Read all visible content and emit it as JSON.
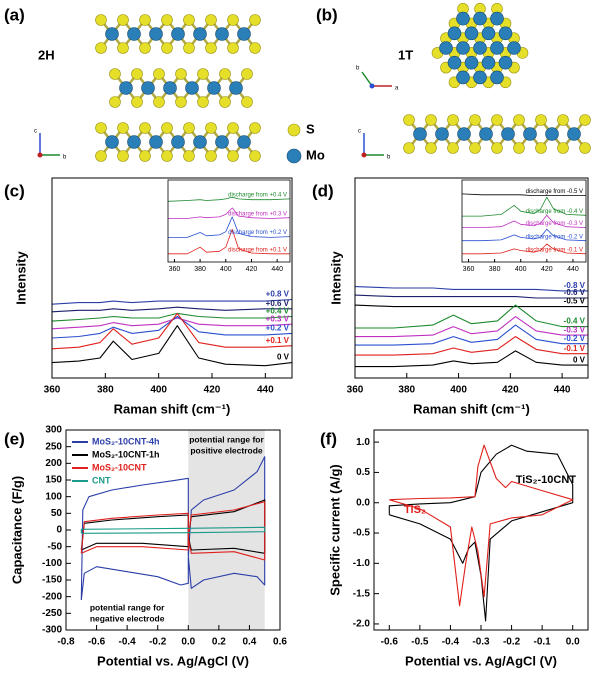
{
  "structures": [
    {
      "label": "(a)",
      "phase": "2H",
      "axes": [
        "c",
        "b"
      ]
    },
    {
      "label": "(b)",
      "phase": "1T",
      "axes": [
        "b",
        "a",
        "c",
        "b"
      ]
    }
  ],
  "atom_legend": [
    "S",
    "Mo"
  ],
  "chart_data": [
    {
      "type": "line",
      "panel_label": "(c)",
      "xlabel": "Raman shift (cm⁻¹)",
      "ylabel": "Intensity",
      "x": [
        360,
        370,
        378,
        383,
        390,
        400,
        407,
        415,
        425,
        440,
        450
      ],
      "xlim": [
        360,
        450
      ],
      "xticks": [
        360,
        380,
        400,
        420,
        440
      ],
      "ylim": [
        0,
        13
      ],
      "series": [
        {
          "name": "+0.8 V",
          "color": "#2b3ea8",
          "values": [
            4.8,
            4.9,
            4.9,
            5.0,
            4.9,
            5.0,
            5.0,
            5.0,
            5.0,
            5.0,
            5.1
          ]
        },
        {
          "name": "+0.6 V",
          "color": "#1c1f6b",
          "values": [
            4.3,
            4.4,
            4.4,
            4.5,
            4.4,
            4.5,
            4.6,
            4.5,
            4.4,
            4.5,
            4.5
          ]
        },
        {
          "name": "+0.4 V",
          "color": "#1d8a2e",
          "values": [
            3.7,
            3.8,
            3.9,
            4.0,
            3.9,
            3.9,
            4.2,
            4.0,
            3.9,
            3.9,
            4.0
          ]
        },
        {
          "name": "+0.3 V",
          "color": "#c030c0",
          "values": [
            3.2,
            3.3,
            3.4,
            3.6,
            3.4,
            3.5,
            3.9,
            3.5,
            3.4,
            3.4,
            3.5
          ]
        },
        {
          "name": "+0.2 V",
          "color": "#2a4fd0",
          "values": [
            2.6,
            2.7,
            2.9,
            3.3,
            2.9,
            3.1,
            4.0,
            3.0,
            2.8,
            2.8,
            2.9
          ]
        },
        {
          "name": "+0.1 V",
          "color": "#e0201c",
          "values": [
            1.9,
            2.0,
            2.3,
            3.2,
            2.2,
            2.6,
            4.2,
            2.3,
            2.0,
            2.0,
            2.1
          ]
        },
        {
          "name": "0 V",
          "color": "#000000",
          "values": [
            1.0,
            1.1,
            1.3,
            2.4,
            1.2,
            1.6,
            3.4,
            1.3,
            0.9,
            0.8,
            1.0
          ]
        }
      ]
    },
    {
      "type": "line",
      "x": [
        355,
        370,
        380,
        385,
        395,
        400,
        405,
        410,
        420,
        435,
        450
      ],
      "xlim": [
        355,
        450
      ],
      "xticks": [
        360,
        380,
        400,
        420,
        440
      ],
      "ylim": [
        0,
        10
      ],
      "series": [
        {
          "name": "discharge from +0.4 V",
          "color": "#1d8a2e",
          "values": [
            7.4,
            7.5,
            7.6,
            7.5,
            7.6,
            7.7,
            7.9,
            7.7,
            7.6,
            7.6,
            7.7
          ]
        },
        {
          "name": "discharge from +0.3 V",
          "color": "#c030c0",
          "values": [
            5.3,
            5.3,
            5.5,
            5.4,
            5.5,
            5.8,
            6.6,
            5.6,
            5.4,
            5.3,
            5.4
          ]
        },
        {
          "name": "discharge from +0.2 V",
          "color": "#2a4fd0",
          "values": [
            3.0,
            3.0,
            3.6,
            3.2,
            3.3,
            3.7,
            5.5,
            3.5,
            3.1,
            3.0,
            3.1
          ]
        },
        {
          "name": "discharge from +0.1 V",
          "color": "#e0201c",
          "values": [
            1.0,
            1.0,
            1.8,
            1.2,
            1.3,
            1.8,
            4.0,
            1.6,
            1.1,
            1.0,
            1.0
          ]
        }
      ]
    },
    {
      "type": "line",
      "panel_label": "(d)",
      "xlabel": "Raman shift (cm⁻¹)",
      "ylabel": "Intensity",
      "x": [
        360,
        375,
        390,
        398,
        405,
        415,
        422,
        430,
        440,
        450
      ],
      "xlim": [
        360,
        450
      ],
      "xticks": [
        360,
        380,
        400,
        420,
        440
      ],
      "ylim": [
        0,
        14
      ],
      "series": [
        {
          "name": "-0.8 V",
          "color": "#2b3ea8",
          "values": [
            6.4,
            6.3,
            6.3,
            6.2,
            6.2,
            6.2,
            6.2,
            6.2,
            6.1,
            6.1
          ]
        },
        {
          "name": "-0.6 V",
          "color": "#1c1f6b",
          "values": [
            5.8,
            5.7,
            5.7,
            5.7,
            5.7,
            5.7,
            5.7,
            5.6,
            5.6,
            5.6
          ]
        },
        {
          "name": "-0.5 V",
          "color": "#000000",
          "values": [
            5.1,
            5.0,
            5.0,
            5.0,
            5.0,
            5.0,
            5.0,
            5.0,
            5.0,
            5.0
          ]
        },
        {
          "name": "-0.4 V",
          "color": "#1d8a2e",
          "values": [
            3.5,
            3.5,
            3.7,
            4.4,
            3.8,
            4.0,
            5.1,
            4.0,
            3.6,
            3.6
          ]
        },
        {
          "name": "-0.3 V",
          "color": "#c030c0",
          "values": [
            2.9,
            2.9,
            3.0,
            3.6,
            3.1,
            3.3,
            4.3,
            3.3,
            3.0,
            3.0
          ]
        },
        {
          "name": "-0.2 V",
          "color": "#2a4fd0",
          "values": [
            2.3,
            2.3,
            2.4,
            2.9,
            2.5,
            2.7,
            3.7,
            2.7,
            2.4,
            2.4
          ]
        },
        {
          "name": "-0.1 V",
          "color": "#e0201c",
          "values": [
            1.6,
            1.6,
            1.7,
            2.1,
            1.8,
            2.0,
            2.9,
            2.0,
            1.7,
            1.7
          ]
        },
        {
          "name": "0 V",
          "color": "#000000",
          "values": [
            0.8,
            0.8,
            0.9,
            1.2,
            1.0,
            1.1,
            1.9,
            1.1,
            0.9,
            0.9
          ]
        }
      ]
    },
    {
      "type": "line",
      "x": [
        355,
        370,
        385,
        395,
        400,
        410,
        415,
        420,
        425,
        435,
        450
      ],
      "xlim": [
        355,
        450
      ],
      "xticks": [
        360,
        380,
        400,
        420,
        440
      ],
      "ylim": [
        0,
        10
      ],
      "series": [
        {
          "name": "discharge from -0.5 V",
          "color": "#000000",
          "values": [
            8.3,
            8.2,
            8.2,
            8.2,
            8.2,
            8.1,
            8.1,
            8.1,
            8.1,
            8.1,
            8.1
          ]
        },
        {
          "name": "discharge from -0.4 V",
          "color": "#1d8a2e",
          "values": [
            5.6,
            5.6,
            5.8,
            6.9,
            6.2,
            5.9,
            6.4,
            7.9,
            6.5,
            5.8,
            5.7
          ]
        },
        {
          "name": "discharge from -0.3 V",
          "color": "#c030c0",
          "values": [
            4.2,
            4.2,
            4.3,
            5.0,
            4.6,
            4.4,
            4.7,
            5.7,
            4.8,
            4.3,
            4.2
          ]
        },
        {
          "name": "discharge from -0.2 V",
          "color": "#2a4fd0",
          "values": [
            2.6,
            2.6,
            2.7,
            3.3,
            3.0,
            2.8,
            3.0,
            4.0,
            3.2,
            2.7,
            2.6
          ]
        },
        {
          "name": "discharge from -0.1 V",
          "color": "#e0201c",
          "values": [
            1.0,
            1.0,
            1.1,
            1.6,
            1.4,
            1.2,
            1.4,
            2.2,
            1.6,
            1.1,
            1.0
          ]
        }
      ]
    },
    {
      "type": "line",
      "panel_label": "(e)",
      "xlabel": "Potential vs. Ag/AgCl (V)",
      "ylabel": "Capacitance (F/g)",
      "xlim": [
        -0.8,
        0.6
      ],
      "xticks": [
        -0.8,
        -0.6,
        -0.4,
        -0.2,
        {
          "value": 0,
          "label": "0.0"
        },
        0.2,
        0.4,
        0.6
      ],
      "ylim": [
        -300,
        300
      ],
      "yticks": [
        -300,
        -250,
        -200,
        -150,
        -100,
        -50,
        0,
        50,
        100,
        150,
        200,
        250,
        300
      ],
      "shade": [
        0,
        0.5
      ],
      "annotations": [
        [
          "potential range for",
          "positive electrode"
        ],
        [
          "potential range for",
          "negative electrode"
        ]
      ],
      "series": [
        {
          "name": "MoS₂-10CNT-4h",
          "color": "#2b3ea8",
          "x": [
            -0.7,
            -0.69,
            -0.65,
            -0.5,
            -0.3,
            -0.1,
            0,
            0,
            -0.05,
            -0.2,
            -0.4,
            -0.6,
            -0.68,
            -0.7,
            null,
            0,
            0.02,
            0.1,
            0.3,
            0.45,
            0.5,
            0.5,
            0.45,
            0.3,
            0.1,
            0.02,
            0
          ],
          "values": [
            -210,
            60,
            100,
            120,
            135,
            148,
            155,
            -160,
            -165,
            -140,
            -125,
            -110,
            -130,
            -210,
            null,
            -80,
            60,
            90,
            120,
            175,
            220,
            -165,
            -140,
            -130,
            -150,
            -175,
            -80
          ]
        },
        {
          "name": "MoS₂-10CNT-1h",
          "color": "#000000",
          "x": [
            -0.7,
            -0.68,
            -0.5,
            -0.2,
            0,
            0,
            -0.3,
            -0.6,
            -0.7,
            null,
            0,
            0.02,
            0.3,
            0.5,
            0.5,
            0.3,
            0.02,
            0
          ],
          "values": [
            -60,
            20,
            30,
            40,
            45,
            -50,
            -40,
            -40,
            -60,
            null,
            -20,
            40,
            55,
            90,
            -70,
            -55,
            -60,
            -20
          ]
        },
        {
          "name": "MoS₂-10CNT",
          "color": "#e0201c",
          "x": [
            -0.7,
            -0.68,
            -0.5,
            -0.2,
            0,
            0,
            -0.3,
            -0.6,
            -0.7,
            null,
            0,
            0.02,
            0.3,
            0.5,
            0.5,
            0.3,
            0.02,
            0
          ],
          "values": [
            -70,
            25,
            35,
            45,
            50,
            -60,
            -50,
            -50,
            -70,
            null,
            -25,
            45,
            60,
            85,
            -90,
            -65,
            -70,
            -25
          ]
        },
        {
          "name": "CNT",
          "color": "#1a9a8a",
          "x": [
            -0.7,
            -0.7,
            0,
            0.5,
            0.5,
            0,
            -0.7
          ],
          "values": [
            -10,
            2,
            5,
            8,
            -5,
            -8,
            -10
          ]
        }
      ]
    },
    {
      "type": "line",
      "panel_label": "(f)",
      "xlabel": "Potential vs. Ag/AgCl (V)",
      "ylabel": "Specific current (A/g)",
      "xlim": [
        -0.65,
        0.05
      ],
      "xticks": [
        -0.6,
        -0.5,
        -0.4,
        -0.3,
        -0.2,
        -0.1,
        {
          "value": 0,
          "label": "0.0"
        }
      ],
      "ylim": [
        -2.1,
        1.2
      ],
      "yticks": [
        {
          "value": -2,
          "label": "-2.0"
        },
        -1.5,
        {
          "value": -1,
          "label": "-1.0"
        },
        -0.5,
        {
          "value": 0,
          "label": "0.0"
        },
        0.5,
        {
          "value": 1,
          "label": "1.0"
        }
      ],
      "series": [
        {
          "name": "TiS₂-10CNT",
          "color": "#000000",
          "x": [
            -0.6,
            -0.5,
            -0.4,
            -0.36,
            -0.34,
            -0.32,
            -0.3,
            -0.285,
            -0.27,
            -0.2,
            -0.1,
            0,
            0,
            -0.05,
            -0.15,
            -0.2,
            -0.25,
            -0.3,
            -0.32,
            -0.4,
            -0.5,
            -0.6,
            -0.6
          ],
          "values": [
            -0.2,
            -0.35,
            -0.6,
            -1.0,
            -0.75,
            -0.65,
            -1.2,
            -1.95,
            -0.6,
            -0.3,
            -0.15,
            0,
            0.3,
            0.8,
            0.85,
            0.95,
            0.8,
            0.5,
            0.1,
            0,
            -0.02,
            -0.05,
            -0.2
          ]
        },
        {
          "name": "TiS₂",
          "color": "#e0201c",
          "x": [
            -0.6,
            -0.5,
            -0.4,
            -0.37,
            -0.35,
            -0.33,
            -0.31,
            -0.29,
            -0.27,
            -0.2,
            -0.1,
            0,
            -0.1,
            -0.2,
            -0.22,
            -0.25,
            -0.29,
            -0.31,
            -0.32,
            -0.4,
            -0.5,
            -0.6
          ],
          "values": [
            0.05,
            -0.1,
            -0.4,
            -1.7,
            -1.0,
            -0.4,
            -0.8,
            -1.55,
            -0.35,
            -0.25,
            -0.2,
            0.05,
            0.2,
            0.35,
            0.25,
            0.4,
            0.95,
            0.6,
            0.1,
            0.08,
            0.07,
            0.05
          ]
        }
      ]
    }
  ]
}
